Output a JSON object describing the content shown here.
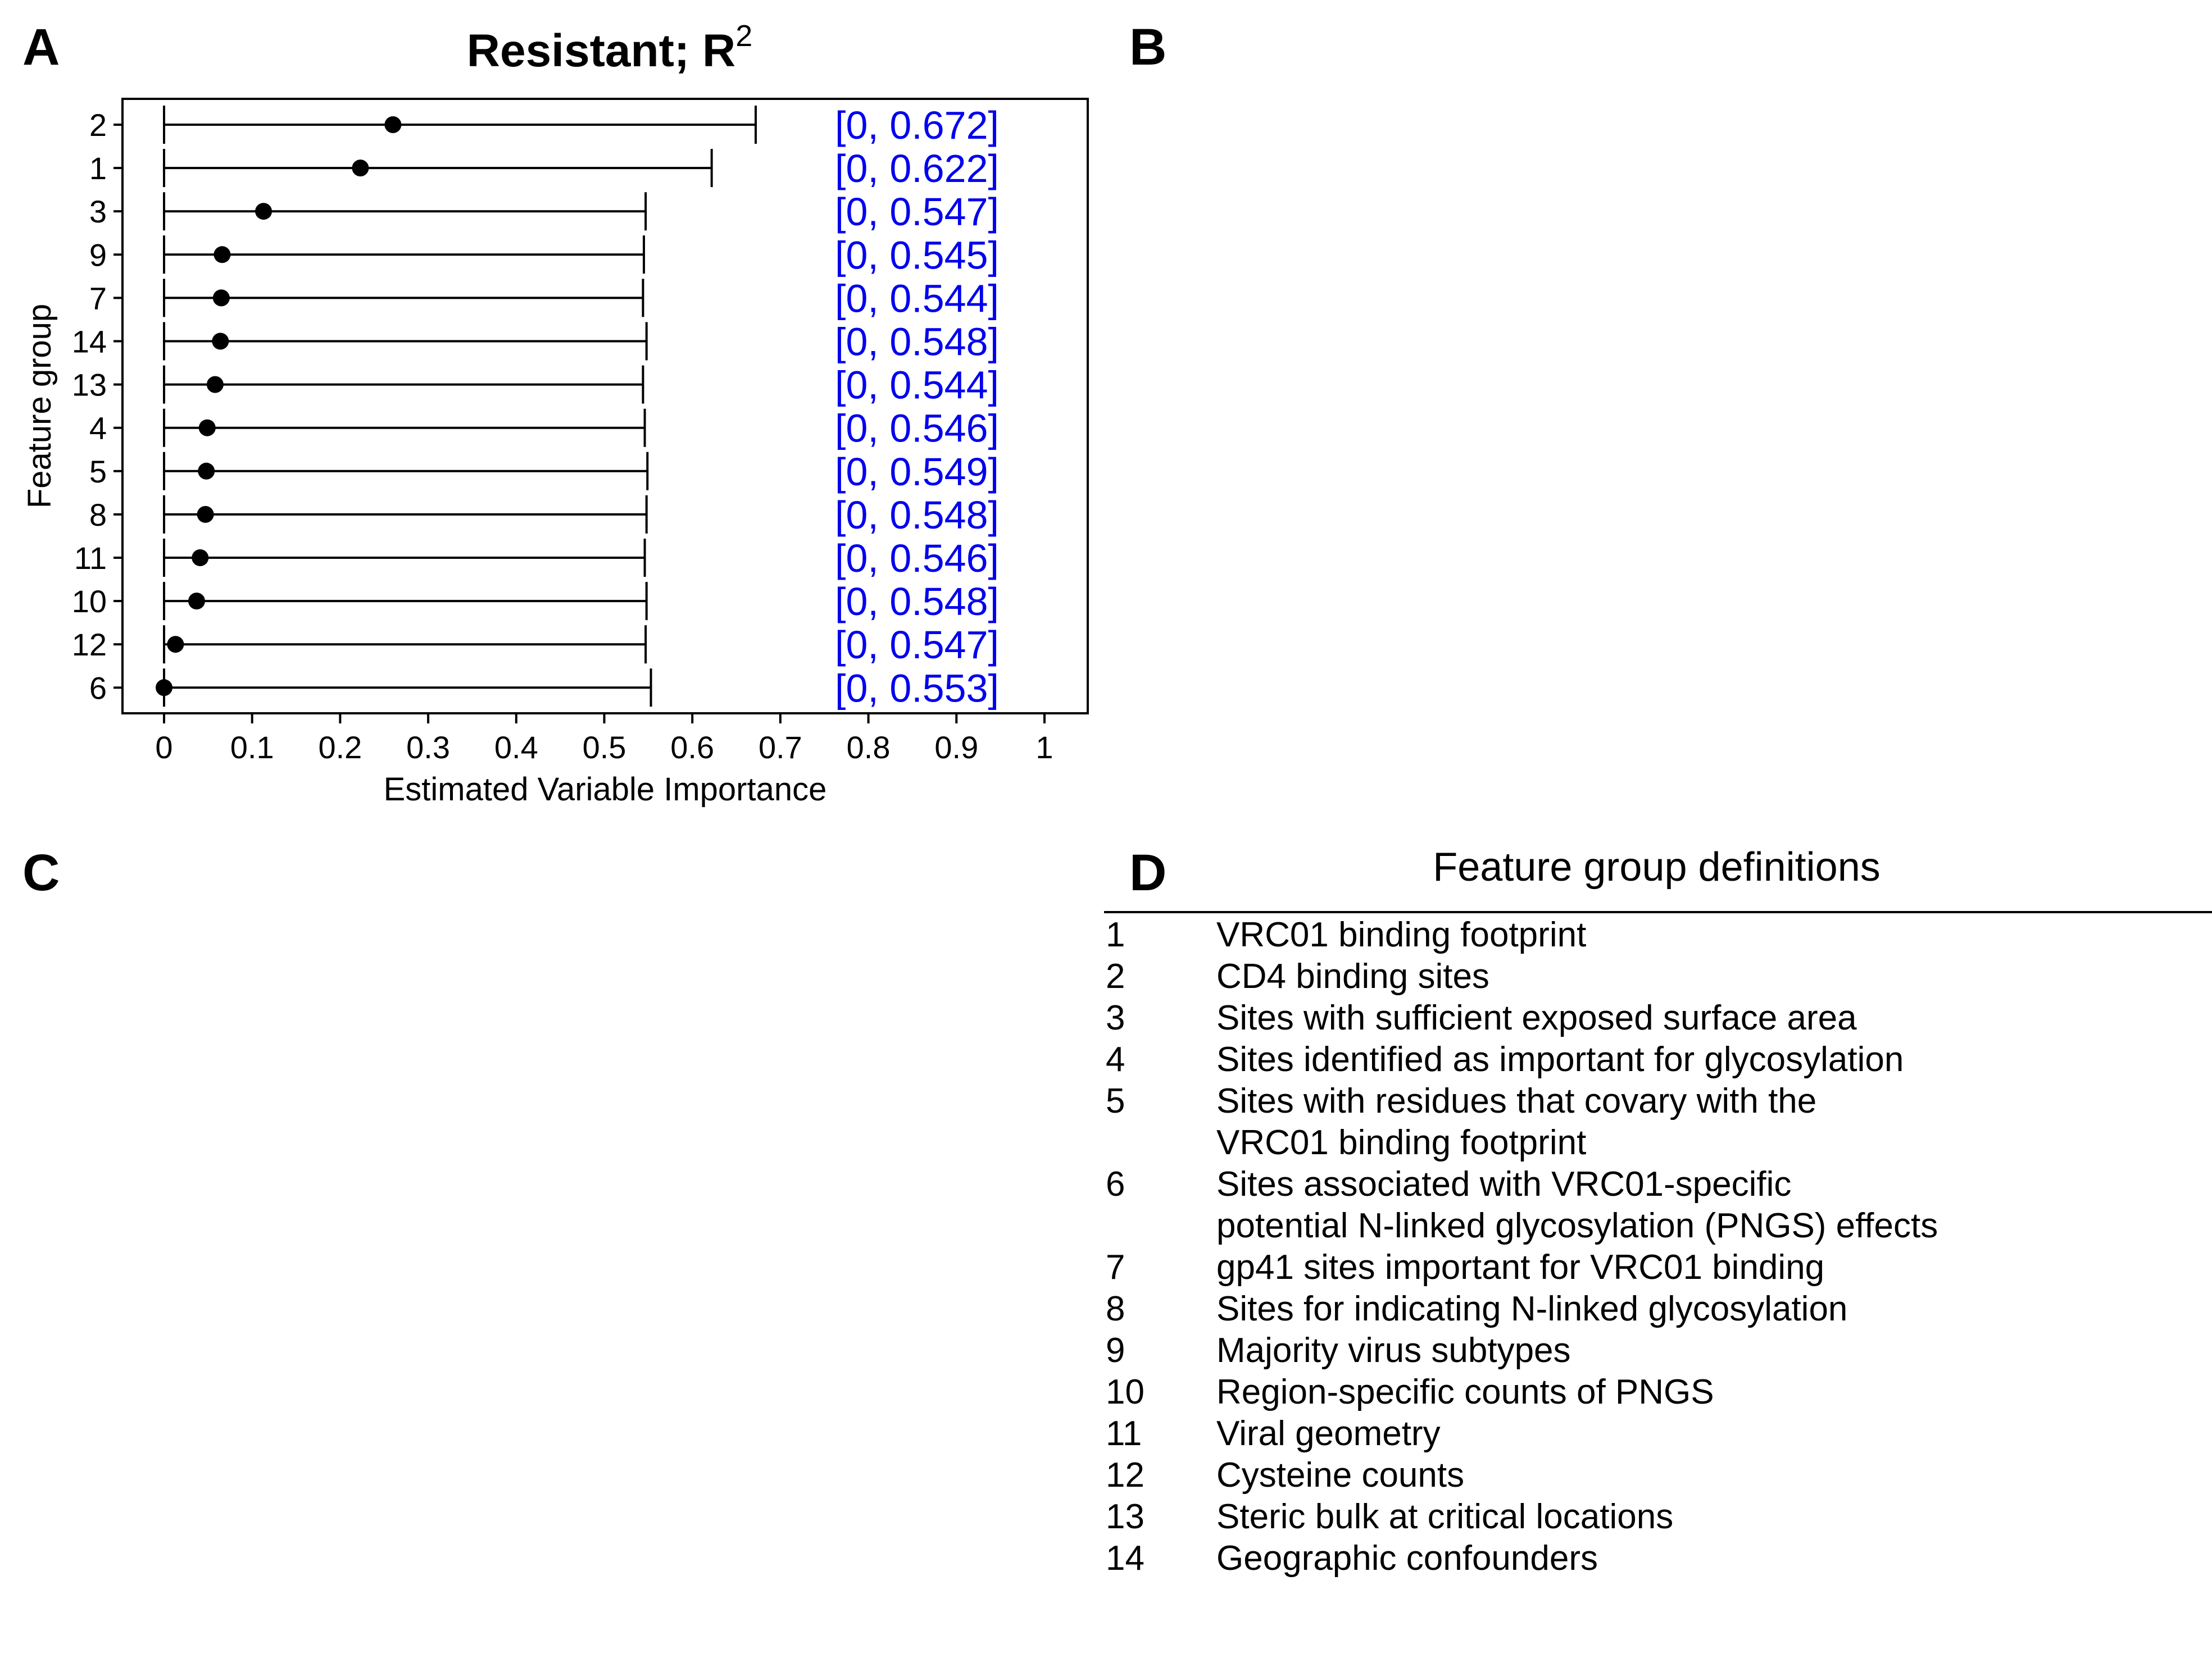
{
  "panels": {
    "a": "A",
    "b": "B",
    "c": "C",
    "d": "D"
  },
  "chart_data": {
    "type": "interval",
    "title": "Resistant;  R",
    "title_superscript": "2",
    "xlabel": "Estimated Variable Importance",
    "ylabel": "Feature group",
    "xlim": [
      0,
      1
    ],
    "x_ticks": [
      "0",
      "0.1",
      "0.2",
      "0.3",
      "0.4",
      "0.5",
      "0.6",
      "0.7",
      "0.8",
      "0.9",
      "1"
    ],
    "x_tick_values": [
      0,
      0.1,
      0.2,
      0.3,
      0.4,
      0.5,
      0.6,
      0.7,
      0.8,
      0.9,
      1
    ],
    "grid": false,
    "point_color": "#000000",
    "interval_label_color": "#0000ee",
    "rows": [
      {
        "group": "2",
        "estimate": 0.26,
        "lower": 0,
        "upper": 0.672,
        "label": "[0, 0.672]"
      },
      {
        "group": "1",
        "estimate": 0.223,
        "lower": 0,
        "upper": 0.622,
        "label": "[0, 0.622]"
      },
      {
        "group": "3",
        "estimate": 0.113,
        "lower": 0,
        "upper": 0.547,
        "label": "[0, 0.547]"
      },
      {
        "group": "9",
        "estimate": 0.066,
        "lower": 0,
        "upper": 0.545,
        "label": "[0, 0.545]"
      },
      {
        "group": "7",
        "estimate": 0.065,
        "lower": 0,
        "upper": 0.544,
        "label": "[0, 0.544]"
      },
      {
        "group": "14",
        "estimate": 0.064,
        "lower": 0,
        "upper": 0.548,
        "label": "[0, 0.548]"
      },
      {
        "group": "13",
        "estimate": 0.058,
        "lower": 0,
        "upper": 0.544,
        "label": "[0, 0.544]"
      },
      {
        "group": "4",
        "estimate": 0.049,
        "lower": 0,
        "upper": 0.546,
        "label": "[0, 0.546]"
      },
      {
        "group": "5",
        "estimate": 0.048,
        "lower": 0,
        "upper": 0.549,
        "label": "[0, 0.549]"
      },
      {
        "group": "8",
        "estimate": 0.047,
        "lower": 0,
        "upper": 0.548,
        "label": "[0, 0.548]"
      },
      {
        "group": "11",
        "estimate": 0.041,
        "lower": 0,
        "upper": 0.546,
        "label": "[0, 0.546]"
      },
      {
        "group": "10",
        "estimate": 0.037,
        "lower": 0,
        "upper": 0.548,
        "label": "[0, 0.548]"
      },
      {
        "group": "12",
        "estimate": 0.013,
        "lower": 0,
        "upper": 0.547,
        "label": "[0, 0.547]"
      },
      {
        "group": "6",
        "estimate": 0.0,
        "lower": 0,
        "upper": 0.553,
        "label": "[0, 0.553]"
      }
    ]
  },
  "definitions": {
    "title": "Feature group definitions",
    "items": [
      {
        "num": "1",
        "lines": [
          "VRC01 binding footprint"
        ]
      },
      {
        "num": "2",
        "lines": [
          "CD4 binding sites"
        ]
      },
      {
        "num": "3",
        "lines": [
          "Sites with sufficient exposed surface area"
        ]
      },
      {
        "num": "4",
        "lines": [
          "Sites identified as important for glycosylation"
        ]
      },
      {
        "num": "5",
        "lines": [
          "Sites with residues that covary with the",
          "VRC01 binding footprint"
        ]
      },
      {
        "num": "6",
        "lines": [
          "Sites associated with VRC01-specific",
          "potential N-linked glycosylation (PNGS) effects"
        ]
      },
      {
        "num": "7",
        "lines": [
          "gp41 sites important for VRC01 binding"
        ]
      },
      {
        "num": "8",
        "lines": [
          "Sites for indicating N-linked glycosylation"
        ]
      },
      {
        "num": "9",
        "lines": [
          "Majority virus subtypes"
        ]
      },
      {
        "num": "10",
        "lines": [
          "Region-specific counts of PNGS"
        ]
      },
      {
        "num": "11",
        "lines": [
          "Viral geometry"
        ]
      },
      {
        "num": "12",
        "lines": [
          "Cysteine counts"
        ]
      },
      {
        "num": "13",
        "lines": [
          "Steric bulk at critical locations"
        ]
      },
      {
        "num": "14",
        "lines": [
          "Geographic confounders"
        ]
      }
    ]
  }
}
